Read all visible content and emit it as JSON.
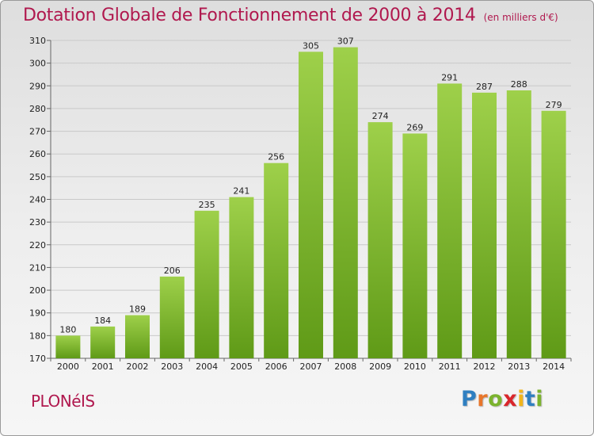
{
  "header": {
    "title": "Dotation Globale de Fonctionnement de 2000 à 2014",
    "subtitle": "(en milliers d'€)"
  },
  "footer": {
    "commune": "PLONéIS",
    "logo_letters": [
      {
        "char": "P",
        "color": "#2f7fc1"
      },
      {
        "char": "r",
        "color": "#e8762b"
      },
      {
        "char": "o",
        "color": "#7bb32e"
      },
      {
        "char": "x",
        "color": "#d9262b"
      },
      {
        "char": "i",
        "color": "#f1b51c"
      },
      {
        "char": "t",
        "color": "#2f7fc1"
      },
      {
        "char": "i",
        "color": "#7bb32e"
      }
    ]
  },
  "chart_data": {
    "type": "bar",
    "title": "Dotation Globale de Fonctionnement de 2000 à 2014",
    "subtitle": "(en milliers d'€)",
    "categories": [
      "2000",
      "2001",
      "2002",
      "2003",
      "2004",
      "2005",
      "2006",
      "2007",
      "2008",
      "2009",
      "2010",
      "2011",
      "2012",
      "2013",
      "2014"
    ],
    "values": [
      180,
      184,
      189,
      206,
      235,
      241,
      256,
      305,
      307,
      274,
      269,
      291,
      287,
      288,
      279
    ],
    "ylim": [
      170,
      310
    ],
    "yticks": [
      170,
      180,
      190,
      200,
      210,
      220,
      230,
      240,
      250,
      260,
      270,
      280,
      290,
      300,
      310
    ],
    "grid": true,
    "bar_color_top": "#9ed04a",
    "bar_color_bottom": "#5f9a17"
  }
}
